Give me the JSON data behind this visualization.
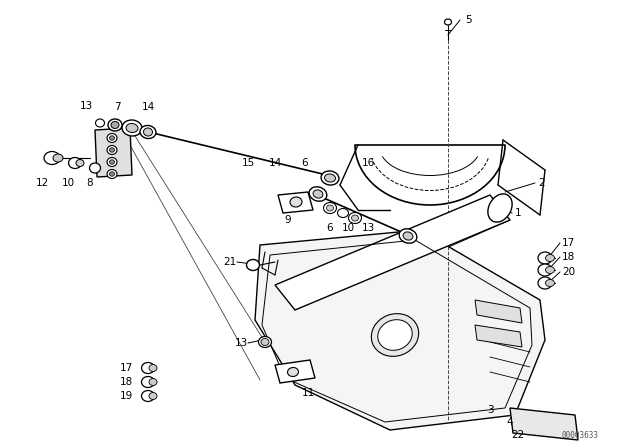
{
  "bg_color": "#ffffff",
  "line_color": "#000000",
  "text_color": "#000000",
  "watermark": "00003633",
  "fig_width": 6.4,
  "fig_height": 4.48,
  "dpi": 100
}
